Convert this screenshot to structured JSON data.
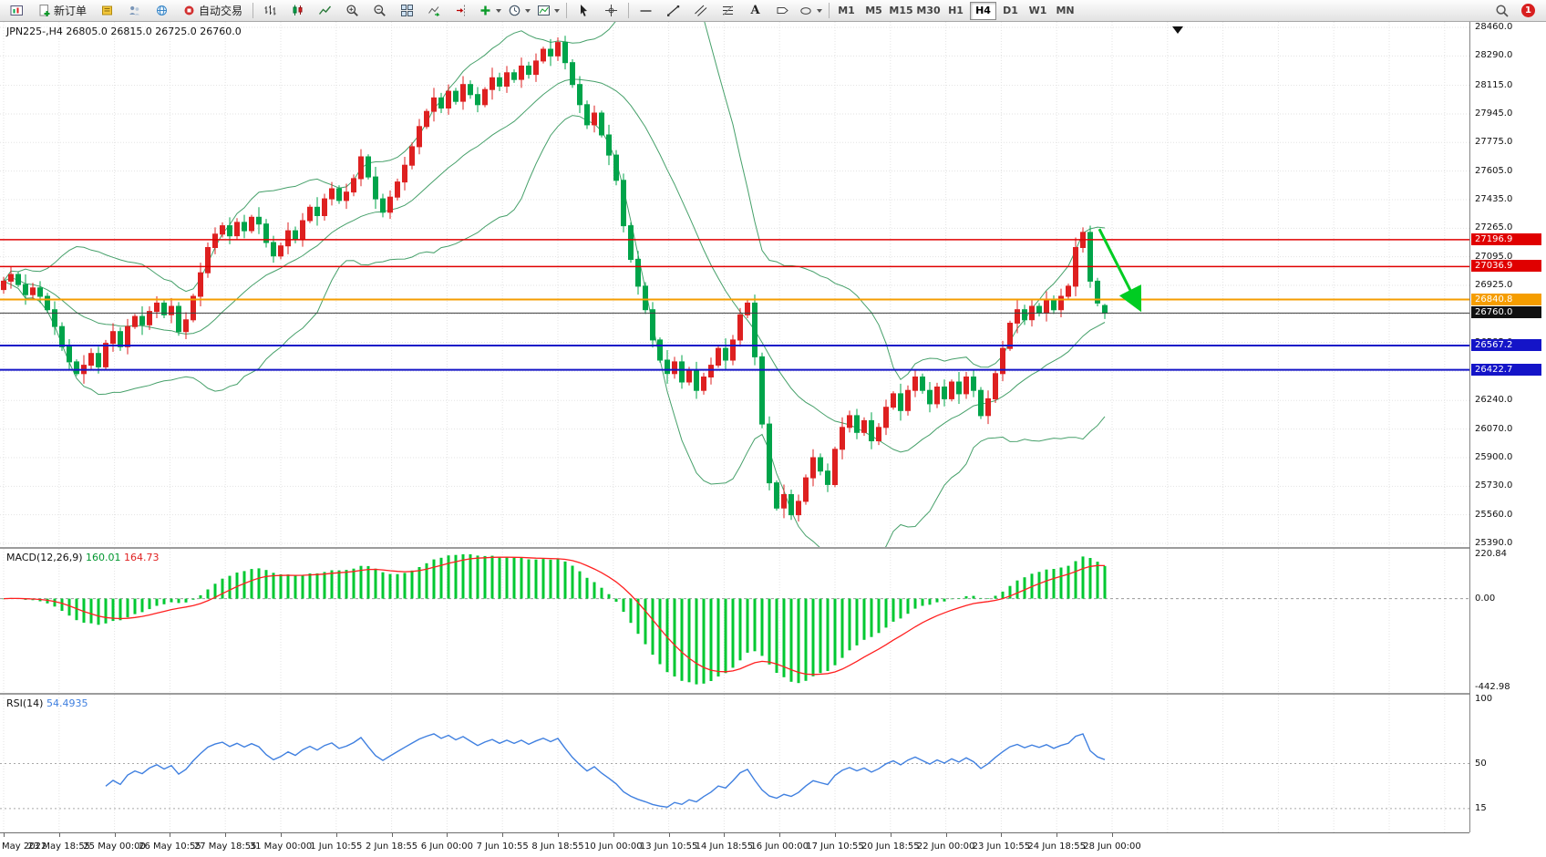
{
  "toolbar": {
    "new_order_label": "新订单",
    "autotrading_label": "自动交易",
    "text_tool_label": "A",
    "timeframes": [
      "M1",
      "M5",
      "M15",
      "M30",
      "H1",
      "H4",
      "D1",
      "W1",
      "MN"
    ],
    "active_timeframe": "H4",
    "notification_count": "1"
  },
  "chart": {
    "header": "JPN225-,H4  26805.0 26815.0 26725.0 26760.0"
  },
  "macd": {
    "name": "MACD(12,26,9)",
    "value_main": "160.01",
    "value_signal": "164.73"
  },
  "rsi": {
    "name": "RSI(14)",
    "value": "54.4935"
  },
  "chart_data": [
    {
      "type": "candlestick",
      "symbol": "JPN225-",
      "timeframe": "H4",
      "ylim": [
        25390.0,
        28460.0
      ],
      "y_ticks": [
        "28460.0",
        "28290.0",
        "28115.0",
        "27945.0",
        "27775.0",
        "27605.0",
        "27435.0",
        "27265.0",
        "27095.0",
        "26925.0",
        "26755.0",
        "26585.0",
        "26415.0",
        "26240.0",
        "26070.0",
        "25900.0",
        "25730.0",
        "25560.0",
        "25390.0"
      ],
      "bollinger": {
        "period": 20,
        "deviation": 2
      },
      "colors": {
        "bull": "#de2020",
        "bear": "#00a44a",
        "band": "#46a06a",
        "grid": "#e3e3e3"
      },
      "hlines": [
        {
          "price": 27196.9,
          "label": "27196.9",
          "color": "#e00000",
          "width": 1.4
        },
        {
          "price": 27036.9,
          "label": "27036.9",
          "color": "#e00000",
          "width": 1.4
        },
        {
          "price": 26840.8,
          "label": "26840.8",
          "color": "#f59d00",
          "width": 2
        },
        {
          "price": 26760.0,
          "label": "26760.0",
          "color": "#3c3c3c",
          "width": 1,
          "tag": "#111111"
        },
        {
          "price": 26567.2,
          "label": "26567.2",
          "color": "#1414c8",
          "width": 2
        },
        {
          "price": 26422.7,
          "label": "26422.7",
          "color": "#1414c8",
          "width": 2
        }
      ],
      "arrow": {
        "from_price": 27260,
        "to_price": 26810,
        "color": "#00cc22"
      },
      "x_labels": [
        "May 2022",
        "23 May 18:55",
        "25 May 00:00",
        "26 May 10:55",
        "27 May 18:55",
        "31 May 00:00",
        "1 Jun 10:55",
        "2 Jun 18:55",
        "6 Jun 00:00",
        "7 Jun 10:55",
        "8 Jun 18:55",
        "10 Jun 00:00",
        "13 Jun 10:55",
        "14 Jun 18:55",
        "16 Jun 00:00",
        "17 Jun 10:55",
        "20 Jun 18:55",
        "22 Jun 00:00",
        "23 Jun 10:55",
        "24 Jun 18:55",
        "28 Jun 00:00"
      ],
      "candles": [
        [
          26900,
          26975,
          26875,
          26950
        ],
        [
          26950,
          27035,
          26905,
          26990
        ],
        [
          26990,
          27005,
          26915,
          26930
        ],
        [
          26930,
          26990,
          26810,
          26870
        ],
        [
          26870,
          26940,
          26840,
          26910
        ],
        [
          26910,
          26950,
          26820,
          26860
        ],
        [
          26860,
          26880,
          26760,
          26780
        ],
        [
          26780,
          26830,
          26630,
          26680
        ],
        [
          26680,
          26705,
          26535,
          26560
        ],
        [
          26560,
          26605,
          26425,
          26470
        ],
        [
          26470,
          26485,
          26385,
          26400
        ],
        [
          26400,
          26510,
          26340,
          26450
        ],
        [
          26450,
          26550,
          26420,
          26520
        ],
        [
          26520,
          26560,
          26400,
          26440
        ],
        [
          26440,
          26600,
          26420,
          26580
        ],
        [
          26580,
          26700,
          26530,
          26650
        ],
        [
          26650,
          26675,
          26535,
          26560
        ],
        [
          26560,
          26725,
          26515,
          26680
        ],
        [
          26680,
          26755,
          26665,
          26740
        ],
        [
          26740,
          26800,
          26630,
          26690
        ],
        [
          26690,
          26800,
          26660,
          26770
        ],
        [
          26770,
          26860,
          26730,
          26820
        ],
        [
          26820,
          26840,
          26730,
          26750
        ],
        [
          26750,
          26850,
          26700,
          26800
        ],
        [
          26800,
          26825,
          26625,
          26650
        ],
        [
          26650,
          26765,
          26605,
          26720
        ],
        [
          26720,
          26875,
          26705,
          26860
        ],
        [
          26860,
          27060,
          26800,
          27000
        ],
        [
          27000,
          27180,
          26970,
          27150
        ],
        [
          27150,
          27270,
          27110,
          27230
        ],
        [
          27230,
          27300,
          27210,
          27280
        ],
        [
          27280,
          27330,
          27170,
          27220
        ],
        [
          27220,
          27325,
          27195,
          27300
        ],
        [
          27300,
          27345,
          27205,
          27250
        ],
        [
          27250,
          27345,
          27235,
          27330
        ],
        [
          27330,
          27390,
          27230,
          27290
        ],
        [
          27290,
          27320,
          27150,
          27180
        ],
        [
          27180,
          27220,
          27060,
          27100
        ],
        [
          27100,
          27180,
          27080,
          27160
        ],
        [
          27160,
          27300,
          27110,
          27250
        ],
        [
          27250,
          27275,
          27175,
          27200
        ],
        [
          27200,
          27355,
          27155,
          27310
        ],
        [
          27310,
          27405,
          27295,
          27390
        ],
        [
          27390,
          27450,
          27280,
          27340
        ],
        [
          27340,
          27470,
          27310,
          27440
        ],
        [
          27440,
          27540,
          27400,
          27500
        ],
        [
          27500,
          27520,
          27410,
          27430
        ],
        [
          27430,
          27530,
          27380,
          27480
        ],
        [
          27480,
          27585,
          27455,
          27560
        ],
        [
          27560,
          27735,
          27515,
          27690
        ],
        [
          27690,
          27705,
          27555,
          27570
        ],
        [
          27570,
          27630,
          27380,
          27440
        ],
        [
          27440,
          27470,
          27330,
          27360
        ],
        [
          27360,
          27490,
          27320,
          27450
        ],
        [
          27450,
          27560,
          27430,
          27540
        ],
        [
          27540,
          27690,
          27490,
          27640
        ],
        [
          27640,
          27775,
          27615,
          27750
        ],
        [
          27750,
          27915,
          27705,
          27870
        ],
        [
          27870,
          27975,
          27855,
          27960
        ],
        [
          27960,
          28100,
          27900,
          28040
        ],
        [
          28040,
          28070,
          27950,
          27980
        ],
        [
          27980,
          28120,
          27940,
          28080
        ],
        [
          28080,
          28100,
          28000,
          28020
        ],
        [
          28020,
          28170,
          27970,
          28120
        ],
        [
          28120,
          28145,
          28035,
          28060
        ],
        [
          28060,
          28105,
          27955,
          28000
        ],
        [
          28000,
          28105,
          27985,
          28090
        ],
        [
          28090,
          28220,
          28030,
          28160
        ],
        [
          28160,
          28190,
          28080,
          28110
        ],
        [
          28110,
          28230,
          28070,
          28190
        ],
        [
          28190,
          28210,
          28130,
          28150
        ],
        [
          28150,
          28280,
          28100,
          28230
        ],
        [
          28230,
          28255,
          28155,
          28180
        ],
        [
          28180,
          28305,
          28135,
          28260
        ],
        [
          28260,
          28345,
          28245,
          28330
        ],
        [
          28330,
          28390,
          28230,
          28290
        ],
        [
          28290,
          28400,
          28260,
          28370
        ],
        [
          28370,
          28410,
          28210,
          28250
        ],
        [
          28250,
          28270,
          28100,
          28120
        ],
        [
          28120,
          28170,
          27950,
          28000
        ],
        [
          28000,
          28025,
          27855,
          27880
        ],
        [
          27880,
          27995,
          27835,
          27950
        ],
        [
          27950,
          27965,
          27805,
          27820
        ],
        [
          27820,
          27880,
          27640,
          27700
        ],
        [
          27700,
          27730,
          27520,
          27550
        ],
        [
          27550,
          27590,
          27240,
          27280
        ],
        [
          27280,
          27300,
          27060,
          27080
        ],
        [
          27080,
          27130,
          26870,
          26920
        ],
        [
          26920,
          26945,
          26755,
          26780
        ],
        [
          26780,
          26825,
          26555,
          26600
        ],
        [
          26600,
          26615,
          26465,
          26480
        ],
        [
          26480,
          26540,
          26340,
          26400
        ],
        [
          26400,
          26500,
          26370,
          26470
        ],
        [
          26470,
          26510,
          26310,
          26350
        ],
        [
          26350,
          26440,
          26330,
          26420
        ],
        [
          26420,
          26470,
          26250,
          26300
        ],
        [
          26300,
          26405,
          26275,
          26380
        ],
        [
          26380,
          26495,
          26335,
          26450
        ],
        [
          26450,
          26565,
          26435,
          26550
        ],
        [
          26550,
          26610,
          26420,
          26480
        ],
        [
          26480,
          26630,
          26450,
          26600
        ],
        [
          26600,
          26790,
          26560,
          26750
        ],
        [
          26750,
          26840,
          26730,
          26820
        ],
        [
          26820,
          26870,
          26450,
          26500
        ],
        [
          26500,
          26525,
          26075,
          26100
        ],
        [
          26100,
          26145,
          25705,
          25750
        ],
        [
          25750,
          25765,
          25585,
          25600
        ],
        [
          25600,
          25740,
          25540,
          25680
        ],
        [
          25680,
          25710,
          25530,
          25560
        ],
        [
          25560,
          25680,
          25520,
          25640
        ],
        [
          25640,
          25800,
          25620,
          25780
        ],
        [
          25780,
          25950,
          25730,
          25900
        ],
        [
          25900,
          25925,
          25795,
          25820
        ],
        [
          25820,
          25865,
          25695,
          25740
        ],
        [
          25740,
          25965,
          25725,
          25950
        ],
        [
          25950,
          26140,
          25890,
          26080
        ],
        [
          26080,
          26180,
          26050,
          26150
        ],
        [
          26150,
          26190,
          26010,
          26050
        ],
        [
          26050,
          26140,
          26030,
          26120
        ],
        [
          26120,
          26170,
          25950,
          26000
        ],
        [
          26000,
          26105,
          25975,
          26080
        ],
        [
          26080,
          26245,
          26035,
          26200
        ],
        [
          26200,
          26295,
          26185,
          26280
        ],
        [
          26280,
          26340,
          26120,
          26180
        ],
        [
          26180,
          26330,
          26150,
          26300
        ],
        [
          26300,
          26420,
          26260,
          26380
        ],
        [
          26380,
          26400,
          26280,
          26300
        ],
        [
          26300,
          26350,
          26170,
          26220
        ],
        [
          26220,
          26345,
          26195,
          26320
        ],
        [
          26320,
          26365,
          26205,
          26250
        ],
        [
          26250,
          26365,
          26235,
          26350
        ],
        [
          26350,
          26410,
          26220,
          26280
        ],
        [
          26280,
          26410,
          26250,
          26380
        ],
        [
          26380,
          26420,
          26260,
          26300
        ],
        [
          26300,
          26320,
          26130,
          26150
        ],
        [
          26150,
          26300,
          26100,
          26250
        ],
        [
          26250,
          26425,
          26225,
          26400
        ],
        [
          26400,
          26595,
          26355,
          26550
        ],
        [
          26550,
          26715,
          26535,
          26700
        ],
        [
          26700,
          26840,
          26640,
          26780
        ],
        [
          26780,
          26810,
          26690,
          26720
        ],
        [
          26720,
          26840,
          26680,
          26800
        ],
        [
          26800,
          26820,
          26740,
          26760
        ],
        [
          26760,
          26890,
          26710,
          26840
        ],
        [
          26840,
          26865,
          26755,
          26780
        ],
        [
          26780,
          26905,
          26735,
          26860
        ],
        [
          26860,
          26935,
          26845,
          26920
        ],
        [
          26920,
          27210,
          26860,
          27150
        ],
        [
          27150,
          27270,
          27120,
          27240
        ],
        [
          27240,
          27280,
          26910,
          26950
        ],
        [
          26950,
          26970,
          26800,
          26820
        ],
        [
          26805,
          26815,
          26725,
          26760
        ]
      ]
    },
    {
      "type": "macd_histogram",
      "label": "MACD(12,26,9)",
      "current_values": [
        "160.01",
        "164.73"
      ],
      "params": [
        12,
        26,
        9
      ],
      "ylim": [
        -442.98,
        220.84
      ],
      "y_ticks": [
        "220.84",
        "0.00",
        "-442.98"
      ],
      "histogram_color": "#00c832",
      "signal_color": "#ff2020"
    },
    {
      "type": "rsi_line",
      "label": "RSI(14)",
      "current_value": "54.4935",
      "period": 14,
      "ylim": [
        0,
        100
      ],
      "levels": [
        50,
        15
      ],
      "y_ticks": [
        "100",
        "50",
        "15"
      ],
      "line_color": "#4080e0"
    }
  ]
}
